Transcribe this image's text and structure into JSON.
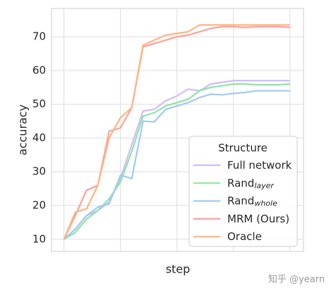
{
  "chart_data": {
    "type": "line",
    "x_label": "step",
    "y_label": "accuracy",
    "x": [
      0,
      1,
      2,
      3,
      4,
      5,
      6,
      7,
      8,
      9,
      10,
      11,
      12,
      13,
      14,
      15,
      16,
      17,
      18,
      19,
      20
    ],
    "xlim": [
      -1.1,
      21.2
    ],
    "xticks": [
      0,
      5,
      10,
      15,
      20
    ],
    "ylim": [
      6.4,
      78.4
    ],
    "yticks": [
      10,
      20,
      30,
      40,
      50,
      60,
      70
    ],
    "grid": true,
    "legend_title": "Structure",
    "legend_position": "lower right",
    "series": [
      {
        "name": "Full network",
        "color": "#d0bbff",
        "values": [
          10,
          13,
          17,
          18.5,
          21,
          28,
          38,
          48,
          48.5,
          51,
          52.5,
          54.5,
          54,
          56,
          56.5,
          57,
          57,
          57,
          57,
          57,
          57
        ]
      },
      {
        "name": "Rand",
        "name_sub": "layer",
        "color": "#8de5a1",
        "values": [
          10,
          12,
          16,
          18.5,
          22,
          27,
          36,
          46.5,
          47.5,
          49.5,
          50.5,
          51.5,
          54,
          55,
          55.5,
          56,
          56,
          55.8,
          55.8,
          55.8,
          56
        ]
      },
      {
        "name": "Rand",
        "name_sub": "whole",
        "color": "#a1c9f4",
        "values": [
          10,
          13,
          17,
          19.5,
          20.5,
          29,
          28,
          45,
          44.8,
          48.5,
          49.5,
          50.5,
          52,
          53,
          52.8,
          53.2,
          53.5,
          54,
          54,
          54,
          54
        ]
      },
      {
        "name": "MRM (Ours)",
        "color": "#ff9f9b",
        "values": [
          10,
          17,
          24.5,
          26,
          42,
          43,
          49,
          67,
          68,
          69,
          70,
          70.5,
          71.5,
          72.5,
          73,
          73,
          72.8,
          73,
          73,
          73,
          72.8
        ]
      },
      {
        "name": "Oracle",
        "color": "#ffb482",
        "values": [
          10,
          18,
          19,
          26,
          40,
          46,
          49,
          67.5,
          69,
          70.5,
          71,
          71.5,
          73.5,
          73.5,
          73.5,
          73.5,
          73.5,
          73.5,
          73.5,
          73.5,
          73.5
        ]
      }
    ]
  },
  "watermark": "知乎 @yearn"
}
